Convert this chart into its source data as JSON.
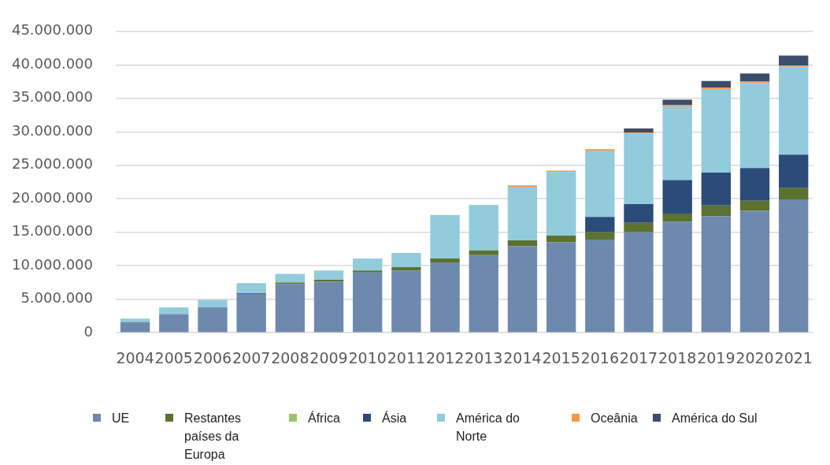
{
  "chart_data": {
    "type": "bar",
    "stacked": true,
    "categories": [
      "2004",
      "2005",
      "2006",
      "2007",
      "2008",
      "2009",
      "2010",
      "2011",
      "2012",
      "2013",
      "2014",
      "2015",
      "2016",
      "2017",
      "2018",
      "2019",
      "2020",
      "2021"
    ],
    "series": [
      {
        "name": "UE",
        "color": "#6d8aae",
        "values": [
          1600000,
          2800000,
          3800000,
          5800000,
          7300000,
          7600000,
          9000000,
          9300000,
          10500000,
          11600000,
          12900000,
          13500000,
          13900000,
          15000000,
          16600000,
          17400000,
          18200000,
          19900000
        ]
      },
      {
        "name": "Restantes países da Europa",
        "color": "#5b7230",
        "values": [
          null,
          null,
          null,
          100000,
          200000,
          300000,
          300000,
          500000,
          600000,
          700000,
          900000,
          1000000,
          1100000,
          1400000,
          1200000,
          1600000,
          1500000,
          1700000
        ]
      },
      {
        "name": "África",
        "color": "#9bc46a",
        "values": [
          null,
          null,
          null,
          null,
          null,
          null,
          null,
          null,
          null,
          null,
          null,
          null,
          null,
          null,
          null,
          null,
          null,
          null
        ]
      },
      {
        "name": "Ásia",
        "color": "#2b4c78",
        "values": [
          null,
          null,
          null,
          null,
          null,
          null,
          null,
          null,
          null,
          null,
          null,
          null,
          2300000,
          2800000,
          5000000,
          4900000,
          4900000,
          5000000
        ]
      },
      {
        "name": "América do Norte",
        "color": "#92cbdc",
        "values": [
          500000,
          1000000,
          1100000,
          1500000,
          1300000,
          1400000,
          1800000,
          2100000,
          6500000,
          6800000,
          8000000,
          9500000,
          9900000,
          10500000,
          11000000,
          12500000,
          12700000,
          13100000
        ]
      },
      {
        "name": "Oceânia",
        "color": "#f79646",
        "values": [
          null,
          null,
          null,
          null,
          null,
          null,
          null,
          null,
          null,
          null,
          200000,
          200000,
          200000,
          200000,
          200000,
          200000,
          200000,
          200000
        ]
      },
      {
        "name": "América do Sul",
        "color": "#3a4e6b",
        "values": [
          null,
          null,
          null,
          null,
          null,
          null,
          null,
          null,
          null,
          null,
          null,
          null,
          null,
          600000,
          800000,
          1000000,
          1200000,
          1500000
        ]
      }
    ],
    "ylim": [
      0,
      45000000
    ],
    "yticks": [
      0,
      {
        "value": 5000000,
        "label": "5.000.000"
      },
      {
        "value": 10000000,
        "label": "10.000.000"
      },
      {
        "value": 15000000,
        "label": "15.000.000"
      },
      {
        "value": 20000000,
        "label": "20.000.000"
      },
      {
        "value": 25000000,
        "label": "25.000.000"
      },
      {
        "value": 30000000,
        "label": "30.000.000"
      },
      {
        "value": 35000000,
        "label": "35.000.000"
      },
      {
        "value": 40000000,
        "label": "40.000.000"
      },
      {
        "value": 45000000,
        "label": "45.000.000"
      }
    ],
    "grid": "y",
    "legend": "bottom"
  }
}
